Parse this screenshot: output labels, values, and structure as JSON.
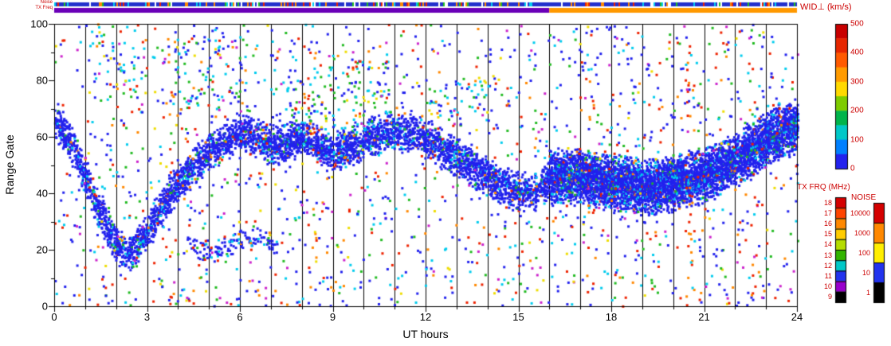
{
  "labels": {
    "noise_strip": "Noise",
    "txfreq_strip": "TX Freq",
    "wid_title": "WID⊥ (km/s)",
    "tx_frq_title": "TX FRQ (MHz)",
    "noise_title": "NOISE"
  },
  "axes": {
    "x": {
      "label": "UT hours",
      "min": 0,
      "max": 24,
      "tick_labels": [
        "0",
        "3",
        "6",
        "9",
        "12",
        "15",
        "18",
        "21",
        "24"
      ]
    },
    "y": {
      "label": "Range Gate",
      "min": 0,
      "max": 100,
      "tick_labels": [
        "0",
        "20",
        "40",
        "60",
        "80",
        "100"
      ]
    }
  },
  "colorbars": {
    "wid": {
      "title": "WID⊥ (km/s)",
      "tick_labels": [
        "500",
        "400",
        "300",
        "200",
        "100",
        "0"
      ],
      "colors": [
        "#c80000",
        "#e62600",
        "#ff5a00",
        "#ff9b00",
        "#ffd900",
        "#7ecc00",
        "#00b44b",
        "#00c8c8",
        "#0080ff",
        "#2222ee"
      ]
    },
    "txfrq": {
      "title": "TX FRQ (MHz)",
      "tick_labels": [
        "18",
        "17",
        "16",
        "15",
        "14",
        "13",
        "12",
        "11",
        "10",
        "9"
      ],
      "colors": [
        "#d40000",
        "#ff4400",
        "#ff8800",
        "#ffcc00",
        "#b4dc00",
        "#32b400",
        "#00c8c8",
        "#2233ee",
        "#9900cc",
        "#000000"
      ]
    },
    "noise": {
      "title": "NOISE",
      "tick_labels": [
        "10000",
        "1000",
        "100",
        "10",
        "1"
      ],
      "colors": [
        "#d40000",
        "#ff8800",
        "#ffee00",
        "#2233ee",
        "#000000"
      ]
    }
  },
  "chart_data": {
    "type": "heatmap",
    "title": "",
    "xlabel": "UT hours",
    "ylabel": "Range Gate",
    "xlim": [
      0,
      24
    ],
    "ylim": [
      0,
      100
    ],
    "x_ticks": [
      0,
      3,
      6,
      9,
      12,
      15,
      18,
      21,
      24
    ],
    "y_ticks": [
      0,
      20,
      40,
      60,
      80,
      100
    ],
    "grid": "vertical black line at every UT hour",
    "colorbar": {
      "label": "WID⊥ (km/s)",
      "range": [
        0,
        500
      ],
      "ticks": [
        0,
        100,
        200,
        300,
        400,
        500
      ]
    },
    "description": "Radar range-time plot of perpendicular spectral width (WID, km/s) vs UT hour and range gate. Dominantly low (blue) values form a wavy ionospheric scatter band: near gate 65 at 00 UT, dipping to ~20 gates at 02 UT, rising to ~60 by 06 UT, meandering 55-63 through 08-12 UT, descending to ~40 by 15-16 UT, then a very dense blue block near gates 38-55 from 16-24 UT after a transmitter frequency change at 16 UT. Sparse multicolored (cyan/green/red/orange) specks of higher width values are scattered everywhere, denser above the main band in the morning sector.",
    "top_strips": [
      {
        "label": "Noise",
        "style": "blue with multicolored specks"
      },
      {
        "label": "TX Freq",
        "style": "purple 0-16 UT, orange 16-24 UT"
      }
    ],
    "strips": {
      "noise_base": "#2230cc",
      "noise_speck_colors": [
        "#22bb22",
        "#ee2200",
        "#00ccee",
        "#ff8800",
        "#ffffff"
      ],
      "speck_chance": 0.28,
      "txfreq_segments": [
        {
          "from": 0,
          "to": 16,
          "color": "#6a00b8"
        },
        {
          "from": 16,
          "to": 24,
          "color": "#ff9900"
        }
      ]
    },
    "generation": {
      "seed": 1337,
      "point_w": 3,
      "point_h": 3,
      "band_path": [
        [
          0,
          66
        ],
        [
          0.5,
          58
        ],
        [
          1,
          45
        ],
        [
          1.5,
          33
        ],
        [
          2,
          21
        ],
        [
          2.5,
          19
        ],
        [
          3,
          27
        ],
        [
          3.5,
          36
        ],
        [
          4,
          44
        ],
        [
          4.5,
          50
        ],
        [
          5,
          55
        ],
        [
          5.5,
          59
        ],
        [
          6,
          62
        ],
        [
          6.5,
          60
        ],
        [
          7,
          57
        ],
        [
          7.5,
          58
        ],
        [
          8,
          60
        ],
        [
          8.5,
          57
        ],
        [
          9,
          54
        ],
        [
          9.5,
          56
        ],
        [
          10,
          59
        ],
        [
          10.5,
          61
        ],
        [
          11,
          62
        ],
        [
          11.5,
          61
        ],
        [
          12,
          59
        ],
        [
          12.5,
          56
        ],
        [
          13,
          52
        ],
        [
          13.5,
          49
        ],
        [
          14,
          46
        ],
        [
          14.5,
          43
        ],
        [
          15,
          41
        ],
        [
          15.5,
          40
        ],
        [
          16,
          46
        ],
        [
          17,
          46
        ],
        [
          18,
          44
        ],
        [
          19,
          42
        ],
        [
          19.5,
          42
        ],
        [
          20,
          44
        ],
        [
          21,
          46
        ],
        [
          21.5,
          49
        ],
        [
          22,
          52
        ],
        [
          22.5,
          55
        ],
        [
          23,
          59
        ],
        [
          23.5,
          62
        ],
        [
          24,
          64
        ]
      ],
      "band_segments": [
        {
          "from": 0,
          "to": 16,
          "thickness": 5,
          "samples": 6
        },
        {
          "from": 16,
          "to": 24.05,
          "thickness": 7,
          "samples": 14
        }
      ],
      "low_band": {
        "from": 4.3,
        "to": 7.2,
        "center": 22,
        "thickness": 3,
        "samples": 3
      },
      "upper_clusters": [
        {
          "from": 1.2,
          "to": 2.6,
          "gmin": 72,
          "gmax": 100,
          "samples": 2
        },
        {
          "from": 3.8,
          "to": 6.2,
          "gmin": 70,
          "gmax": 96,
          "samples": 2
        },
        {
          "from": 7.4,
          "to": 10.8,
          "gmin": 62,
          "gmax": 88,
          "samples": 3
        },
        {
          "from": 12.0,
          "to": 14.0,
          "gmin": 65,
          "gmax": 80,
          "samples": 1
        }
      ],
      "red_streaks": [
        {
          "h": 3.8,
          "count": 14
        },
        {
          "h": 8.3,
          "count": 12
        },
        {
          "h": 17.3,
          "count": 16
        },
        {
          "h": 20.5,
          "count": 30
        },
        {
          "h": 22.6,
          "count": 12
        }
      ],
      "noise_specks": 1700,
      "palette": {
        "blue": "#2222ee",
        "cyan": "#00ccee",
        "green": "#22bb22",
        "yellow": "#eedd00",
        "orange": "#ff8800",
        "red": "#ee2200",
        "magenta": "#cc22cc"
      },
      "band_color_weights": [
        [
          "blue",
          0.86
        ],
        [
          "cyan",
          0.08
        ],
        [
          "green",
          0.03
        ],
        [
          "red",
          0.015
        ],
        [
          "orange",
          0.015
        ]
      ],
      "upper_color_weights": [
        [
          "cyan",
          0.34
        ],
        [
          "green",
          0.26
        ],
        [
          "blue",
          0.25
        ],
        [
          "red",
          0.05
        ],
        [
          "yellow",
          0.05
        ],
        [
          "orange",
          0.05
        ]
      ],
      "noise_color_weights": [
        [
          "blue",
          0.4
        ],
        [
          "cyan",
          0.15
        ],
        [
          "green",
          0.11
        ],
        [
          "red",
          0.14
        ],
        [
          "orange",
          0.07
        ],
        [
          "yellow",
          0.05
        ],
        [
          "magenta",
          0.08
        ]
      ]
    }
  }
}
